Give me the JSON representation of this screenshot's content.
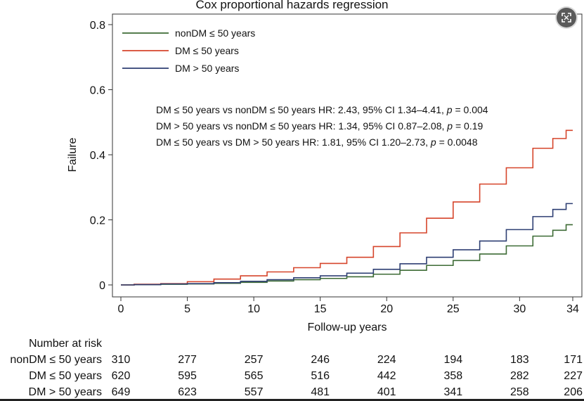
{
  "chart_data": {
    "type": "line",
    "title": "Cox proportional hazards regression",
    "xlabel": "Follow-up years",
    "ylabel": "Failure",
    "xlim": [
      0,
      34
    ],
    "ylim": [
      0,
      0.8
    ],
    "x_ticks": [
      0,
      5,
      10,
      15,
      20,
      25,
      30,
      34
    ],
    "y_ticks": [
      {
        "value": 0,
        "label": "0"
      },
      {
        "value": 0.2,
        "label": "0.2"
      },
      {
        "value": 0.4,
        "label": "0.4"
      },
      {
        "value": 0.6,
        "label": "0.6"
      },
      {
        "value": 0.8,
        "label": "0.8"
      }
    ],
    "grid": false,
    "legend_position": "top-left",
    "series": [
      {
        "name": "nonDM ≤ 50 years",
        "color": "#3d6b35",
        "points": [
          [
            0,
            0
          ],
          [
            2,
            0.001
          ],
          [
            4,
            0.002
          ],
          [
            6,
            0.003
          ],
          [
            8,
            0.005
          ],
          [
            10,
            0.008
          ],
          [
            12,
            0.012
          ],
          [
            14,
            0.016
          ],
          [
            16,
            0.02
          ],
          [
            18,
            0.025
          ],
          [
            20,
            0.033
          ],
          [
            22,
            0.045
          ],
          [
            24,
            0.06
          ],
          [
            26,
            0.075
          ],
          [
            28,
            0.095
          ],
          [
            30,
            0.12
          ],
          [
            32,
            0.15
          ],
          [
            33,
            0.168
          ],
          [
            34,
            0.185
          ]
        ]
      },
      {
        "name": "DM ≤ 50 years",
        "color": "#d6452b",
        "points": [
          [
            0,
            0
          ],
          [
            2,
            0.002
          ],
          [
            4,
            0.004
          ],
          [
            6,
            0.01
          ],
          [
            8,
            0.018
          ],
          [
            10,
            0.028
          ],
          [
            12,
            0.04
          ],
          [
            14,
            0.053
          ],
          [
            16,
            0.066
          ],
          [
            18,
            0.085
          ],
          [
            20,
            0.118
          ],
          [
            22,
            0.16
          ],
          [
            24,
            0.205
          ],
          [
            26,
            0.255
          ],
          [
            28,
            0.31
          ],
          [
            30,
            0.36
          ],
          [
            32,
            0.42
          ],
          [
            33,
            0.45
          ],
          [
            34,
            0.475
          ]
        ]
      },
      {
        "name": "DM > 50 years",
        "color": "#2e3f73",
        "points": [
          [
            0,
            0
          ],
          [
            2,
            0.001
          ],
          [
            4,
            0.003
          ],
          [
            6,
            0.004
          ],
          [
            8,
            0.007
          ],
          [
            10,
            0.011
          ],
          [
            12,
            0.016
          ],
          [
            14,
            0.022
          ],
          [
            16,
            0.028
          ],
          [
            18,
            0.036
          ],
          [
            20,
            0.048
          ],
          [
            22,
            0.065
          ],
          [
            24,
            0.085
          ],
          [
            26,
            0.108
          ],
          [
            28,
            0.135
          ],
          [
            30,
            0.17
          ],
          [
            32,
            0.21
          ],
          [
            33,
            0.232
          ],
          [
            34,
            0.25
          ]
        ]
      }
    ],
    "annotations": [
      {
        "text": "DM ≤ 50 years vs nonDM ≤ 50 years HR: 2.43, 95% CI 1.34–4.41, ",
        "p_label": "p",
        "p_value": " = 0.004"
      },
      {
        "text": "DM > 50 years vs nonDM ≤ 50 years HR: 1.34, 95% CI 0.87–2.08, ",
        "p_label": "p",
        "p_value": " = 0.19"
      },
      {
        "text": "DM ≤ 50 years vs DM > 50 years HR: 1.81, 95% CI 1.20–2.73, ",
        "p_label": "p",
        "p_value": " = 0.0048"
      }
    ],
    "risk_table": {
      "title": "Number at risk",
      "times": [
        0,
        5,
        10,
        15,
        20,
        25,
        30,
        34
      ],
      "rows": [
        {
          "label": "nonDM ≤ 50 years",
          "values": [
            310,
            277,
            257,
            246,
            224,
            194,
            183,
            171
          ]
        },
        {
          "label": "DM ≤ 50 years",
          "values": [
            620,
            595,
            565,
            516,
            442,
            358,
            282,
            227
          ]
        },
        {
          "label": "DM > 50 years",
          "values": [
            649,
            623,
            557,
            481,
            401,
            341,
            258,
            206
          ]
        }
      ]
    }
  },
  "ui": {
    "expand_button": "expand-icon"
  }
}
